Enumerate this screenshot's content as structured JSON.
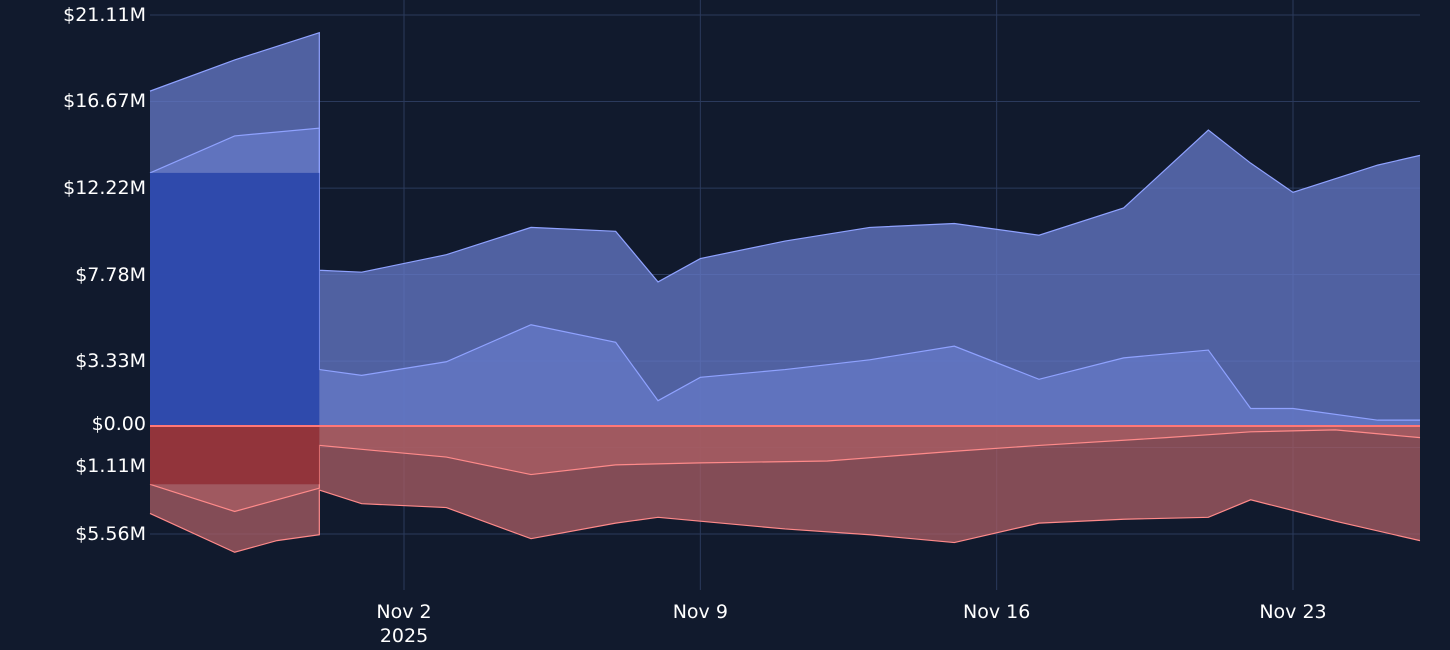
{
  "chart_data": {
    "type": "area",
    "y_tick_labels": [
      "$21.11M",
      "$16.67M",
      "$12.22M",
      "$7.78M",
      "$3.33M",
      "$0.00",
      "$1.11M",
      "$5.56M"
    ],
    "y_tick_values": [
      21.11,
      16.67,
      12.22,
      7.78,
      3.33,
      0,
      -1.11,
      -5.56
    ],
    "x_tick_labels": [
      {
        "top": "Nov 2",
        "bottom": "2025"
      },
      {
        "top": "Nov 9",
        "bottom": ""
      },
      {
        "top": "Nov 16",
        "bottom": ""
      },
      {
        "top": "Nov 23",
        "bottom": ""
      }
    ],
    "x_range": [
      "2025-10-27",
      "2025-11-26"
    ],
    "ylim": [
      -7.2,
      21.9
    ],
    "grid": true,
    "colors": {
      "background": "#111a2d",
      "grid": "#2b3a5c",
      "positive_fill": "#6679c8",
      "positive_line": "#8fa2ff",
      "early_fill": "#1f3ca6",
      "negative_fill": "#a95e64",
      "negative_line": "#ff8a8a",
      "zero_line": "#ff7777"
    },
    "series": [
      {
        "kind": "positive",
        "x": [
          "2025-10-27",
          "2025-10-29",
          "2025-10-31",
          "2025-10-31",
          "2025-11-01",
          "2025-11-03",
          "2025-11-05",
          "2025-11-07",
          "2025-11-08",
          "2025-11-09",
          "2025-11-11",
          "2025-11-13",
          "2025-11-15",
          "2025-11-17",
          "2025-11-19",
          "2025-11-21",
          "2025-11-22",
          "2025-11-23",
          "2025-11-25",
          "2025-11-26"
        ],
        "y": [
          17.2,
          18.8,
          20.2,
          8.0,
          7.9,
          8.8,
          10.2,
          10.0,
          7.4,
          8.6,
          9.5,
          10.2,
          10.4,
          9.8,
          11.2,
          15.2,
          13.5,
          12.0,
          13.4,
          13.9
        ]
      },
      {
        "kind": "positive",
        "x": [
          "2025-10-27",
          "2025-10-29",
          "2025-10-31",
          "2025-10-31",
          "2025-11-01",
          "2025-11-03",
          "2025-11-05",
          "2025-11-07",
          "2025-11-08",
          "2025-11-09",
          "2025-11-11",
          "2025-11-13",
          "2025-11-15",
          "2025-11-17",
          "2025-11-19",
          "2025-11-21",
          "2025-11-22",
          "2025-11-23",
          "2025-11-25",
          "2025-11-26"
        ],
        "y": [
          13.0,
          14.9,
          15.3,
          2.9,
          2.6,
          3.3,
          5.2,
          4.3,
          1.3,
          2.5,
          2.9,
          3.4,
          4.1,
          2.4,
          3.5,
          3.9,
          0.9,
          0.9,
          0.3,
          0.3
        ]
      },
      {
        "kind": "negative",
        "x": [
          "2025-10-27",
          "2025-10-29",
          "2025-10-30",
          "2025-10-31",
          "2025-10-31",
          "2025-11-01",
          "2025-11-03",
          "2025-11-05",
          "2025-11-07",
          "2025-11-08",
          "2025-11-11",
          "2025-11-13",
          "2025-11-15",
          "2025-11-17",
          "2025-11-19",
          "2025-11-21",
          "2025-11-22",
          "2025-11-24",
          "2025-11-26"
        ],
        "y": [
          -4.5,
          -6.5,
          -5.9,
          -5.6,
          -3.3,
          -4.0,
          -4.2,
          -5.8,
          -5.0,
          -4.7,
          -5.3,
          -5.6,
          -6.0,
          -5.0,
          -4.8,
          -4.7,
          -3.8,
          -4.9,
          -5.9
        ]
      },
      {
        "kind": "negative",
        "x": [
          "2025-10-27",
          "2025-10-29",
          "2025-10-31",
          "2025-10-31",
          "2025-11-03",
          "2025-11-05",
          "2025-11-07",
          "2025-11-09",
          "2025-11-12",
          "2025-11-15",
          "2025-11-17",
          "2025-11-20",
          "2025-11-22",
          "2025-11-24",
          "2025-11-26"
        ],
        "y": [
          -3.0,
          -4.4,
          -3.2,
          -1.0,
          -1.6,
          -2.5,
          -2.0,
          -1.9,
          -1.8,
          -1.3,
          -1.0,
          -0.6,
          -0.3,
          -0.2,
          -0.6
        ]
      }
    ]
  }
}
